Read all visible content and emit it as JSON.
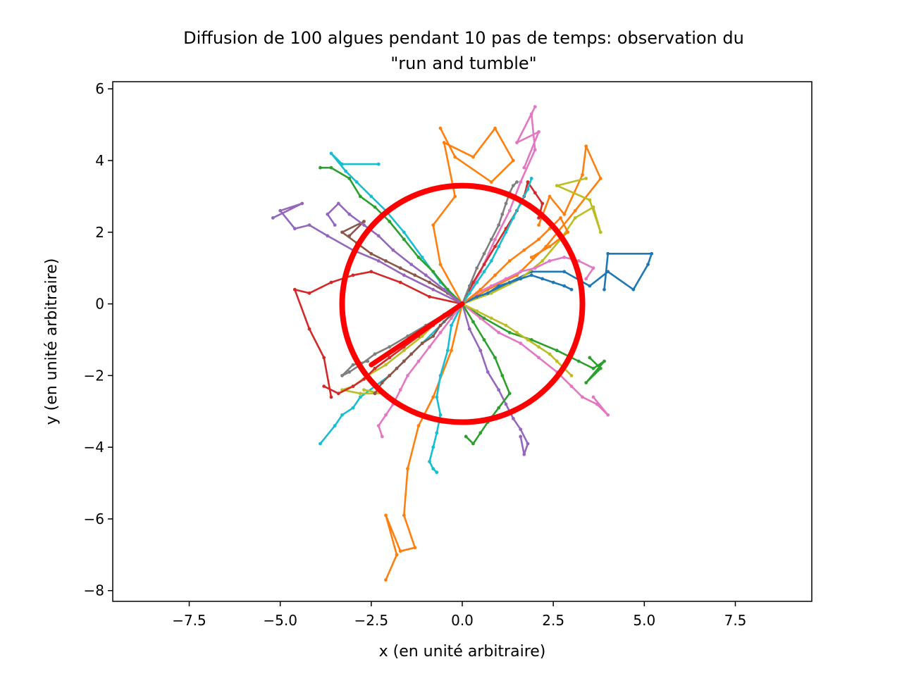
{
  "chart_data": {
    "type": "line",
    "title_line1": "Diffusion de 100 algues pendant 10 pas de temps: observation du",
    "title_line2": "\"run and tumble\"",
    "xlabel": "x (en unité arbitraire)",
    "ylabel": "y (en unité arbitraire)",
    "xlim": [
      -9.6,
      9.6
    ],
    "ylim": [
      -8.3,
      6.2
    ],
    "xticks": [
      -7.5,
      -5.0,
      -2.5,
      0.0,
      2.5,
      5.0,
      7.5
    ],
    "xtick_labels": [
      "−7.5",
      "−5.0",
      "−2.5",
      "0.0",
      "2.5",
      "5.0",
      "7.5"
    ],
    "yticks": [
      -8,
      -6,
      -4,
      -2,
      0,
      2,
      4,
      6
    ],
    "ytick_labels": [
      "−8",
      "−6",
      "−4",
      "−2",
      "0",
      "2",
      "4",
      "6"
    ],
    "grid": false,
    "n_trajectories": 100,
    "n_steps": 10,
    "palette": [
      "#1f77b4",
      "#ff7f0e",
      "#2ca02c",
      "#d62728",
      "#9467bd",
      "#8c564b",
      "#e377c2",
      "#7f7f7f",
      "#bcbd22",
      "#17becf"
    ],
    "series": [
      {
        "color": "#ff7f0e",
        "x": [
          0,
          -0.3,
          -0.8,
          -1.2,
          -1.5,
          -1.6,
          -1.3,
          -1.7,
          -2.1,
          -1.8,
          -2.1
        ],
        "y": [
          0,
          -1.3,
          -2.6,
          -3.4,
          -4.6,
          -5.9,
          -6.8,
          -6.9,
          -5.9,
          -7.0,
          -7.7
        ]
      },
      {
        "color": "#1f77b4",
        "x": [
          0,
          0.9,
          1.9,
          2.8,
          3.5,
          4.0,
          4.7,
          5.1,
          5.2,
          4.0,
          3.9
        ],
        "y": [
          0,
          0.4,
          0.9,
          0.9,
          0.5,
          0.9,
          0.4,
          1.1,
          1.4,
          1.4,
          0.4
        ]
      },
      {
        "color": "#ff7f0e",
        "x": [
          0,
          -0.6,
          -0.8,
          -0.2,
          -0.5,
          0.3,
          0.9,
          1.4,
          0.8,
          -0.2,
          -0.6
        ],
        "y": [
          0,
          1.1,
          2.2,
          3.0,
          4.5,
          4.1,
          4.9,
          4.0,
          3.4,
          4.1,
          4.9
        ]
      },
      {
        "color": "#e377c2",
        "x": [
          0,
          0.5,
          0.9,
          1.3,
          1.6,
          2.0,
          1.9,
          2.0,
          1.5,
          2.1,
          1.7
        ],
        "y": [
          0,
          0.9,
          1.8,
          2.6,
          3.4,
          4.3,
          5.3,
          5.5,
          4.5,
          4.8,
          3.8
        ]
      },
      {
        "color": "#ff7f0e",
        "x": [
          0,
          0.7,
          1.5,
          2.3,
          3.1,
          3.8,
          3.4,
          3.3,
          2.8,
          2.4,
          2.1
        ],
        "y": [
          0,
          0.4,
          0.8,
          1.6,
          2.6,
          3.5,
          4.4,
          3.6,
          2.5,
          3.0,
          2.2
        ]
      },
      {
        "color": "#bcbd22",
        "x": [
          0,
          0.8,
          1.6,
          2.2,
          2.7,
          3.1,
          3.6,
          3.8,
          3.5,
          2.6,
          3.4
        ],
        "y": [
          0,
          0.3,
          0.7,
          1.2,
          1.8,
          2.4,
          2.7,
          2.0,
          2.9,
          3.3,
          3.5
        ]
      },
      {
        "color": "#d62728",
        "x": [
          0,
          -0.9,
          -1.7,
          -2.5,
          -3.0,
          -3.6,
          -4.2,
          -4.6,
          -4.2,
          -3.8,
          -3.6
        ],
        "y": [
          0,
          0.2,
          0.6,
          0.9,
          0.8,
          0.6,
          0.3,
          0.4,
          -0.7,
          -1.5,
          -2.6
        ]
      },
      {
        "color": "#9467bd",
        "x": [
          0,
          -0.8,
          -1.6,
          -2.3,
          -3.0,
          -3.7,
          -4.2,
          -4.6,
          -5.0,
          -4.4,
          -5.2
        ],
        "y": [
          0,
          0.4,
          0.8,
          1.2,
          1.5,
          1.9,
          2.2,
          2.1,
          2.6,
          2.8,
          2.4
        ]
      },
      {
        "color": "#17becf",
        "x": [
          0,
          -0.6,
          -1.1,
          -1.6,
          -2.1,
          -2.5,
          -2.9,
          -3.2,
          -3.6,
          -3.3,
          -2.3
        ],
        "y": [
          0,
          0.6,
          1.3,
          2.0,
          2.6,
          3.0,
          3.4,
          3.7,
          4.2,
          3.9,
          3.9
        ]
      },
      {
        "color": "#17becf",
        "x": [
          0,
          -0.5,
          -1.1,
          -1.6,
          -2.0,
          -2.4,
          -2.8,
          -3.0,
          -3.3,
          -3.5,
          -3.9
        ],
        "y": [
          0,
          -0.5,
          -1.1,
          -1.6,
          -2.0,
          -2.3,
          -2.6,
          -2.9,
          -3.1,
          -3.4,
          -3.9
        ]
      },
      {
        "color": "#17becf",
        "x": [
          0,
          -0.3,
          -0.4,
          -0.6,
          -0.7,
          -0.6,
          -0.7,
          -0.8,
          -0.9,
          -0.8,
          -0.7
        ],
        "y": [
          0,
          -0.6,
          -1.3,
          -2.0,
          -2.6,
          -3.1,
          -3.6,
          -4.0,
          -4.4,
          -4.6,
          -4.7
        ]
      },
      {
        "color": "#2ca02c",
        "x": [
          0,
          0.6,
          1.3,
          1.9,
          2.6,
          3.2,
          3.6,
          3.9,
          3.4,
          3.8,
          3.5
        ],
        "y": [
          0,
          -0.4,
          -0.8,
          -1.0,
          -1.3,
          -1.6,
          -1.8,
          -1.6,
          -2.2,
          -1.8,
          -1.5
        ]
      },
      {
        "color": "#e377c2",
        "x": [
          0,
          0.5,
          1.0,
          1.6,
          2.1,
          2.6,
          3.0,
          3.3,
          3.7,
          4.0,
          3.6
        ],
        "y": [
          0,
          -0.4,
          -0.8,
          -1.1,
          -1.5,
          -1.9,
          -2.3,
          -2.6,
          -2.8,
          -3.1,
          -2.6
        ]
      },
      {
        "color": "#9467bd",
        "x": [
          0,
          0.2,
          0.5,
          0.7,
          1.0,
          1.2,
          1.4,
          1.6,
          1.8,
          1.7,
          1.6
        ],
        "y": [
          0,
          -0.7,
          -1.3,
          -1.9,
          -2.4,
          -2.8,
          -3.2,
          -3.5,
          -3.9,
          -4.2,
          -3.7
        ]
      },
      {
        "color": "#8c564b",
        "x": [
          0,
          -0.4,
          -0.9,
          -1.3,
          -1.7,
          -2.1,
          -2.5,
          -2.9,
          -3.3,
          -2.7,
          -3.1
        ],
        "y": [
          0,
          0.3,
          0.6,
          0.8,
          1.0,
          1.2,
          1.4,
          1.7,
          2.0,
          2.3,
          1.9
        ]
      },
      {
        "color": "#2ca02c",
        "x": [
          0,
          -0.4,
          -0.8,
          -1.2,
          -1.6,
          -2.0,
          -2.4,
          -2.8,
          -3.1,
          -3.6,
          -3.9
        ],
        "y": [
          0,
          0.4,
          0.9,
          1.3,
          1.8,
          2.3,
          2.7,
          3.0,
          3.5,
          3.8,
          3.8
        ]
      },
      {
        "color": "#d62728",
        "x": [
          0,
          0.3,
          0.6,
          0.9,
          1.2,
          1.5,
          1.7,
          1.8,
          2.0,
          2.2,
          2.1
        ],
        "y": [
          0,
          0.6,
          1.1,
          1.6,
          2.1,
          2.6,
          3.0,
          3.4,
          3.1,
          2.8,
          2.4
        ]
      },
      {
        "color": "#7f7f7f",
        "x": [
          0,
          -0.5,
          -1.0,
          -1.5,
          -2.0,
          -2.4,
          -2.8,
          -3.1,
          -3.3,
          -3.0,
          -2.6
        ],
        "y": [
          0,
          -0.3,
          -0.6,
          -0.9,
          -1.2,
          -1.4,
          -1.7,
          -1.9,
          -2.0,
          -1.7,
          -1.6
        ]
      },
      {
        "color": "#bcbd22",
        "x": [
          0,
          -0.6,
          -1.1,
          -1.6,
          -2.1,
          -2.6,
          -3.0,
          -3.3,
          -2.8,
          -2.2,
          -2.7
        ],
        "y": [
          0,
          -0.4,
          -0.9,
          -1.3,
          -1.7,
          -2.0,
          -2.3,
          -2.4,
          -2.5,
          -2.5,
          -2.4
        ]
      },
      {
        "color": "#e377c2",
        "x": [
          0,
          0.4,
          0.8,
          1.2,
          1.6,
          2.0,
          2.4,
          2.8,
          3.2,
          3.6,
          3.4
        ],
        "y": [
          0,
          0.3,
          0.5,
          0.7,
          0.9,
          1.0,
          1.2,
          1.3,
          1.2,
          1.0,
          0.7
        ]
      },
      {
        "color": "#9467bd",
        "x": [
          0,
          -0.5,
          -1.0,
          -1.4,
          -1.9,
          -2.3,
          -2.7,
          -3.1,
          -3.4,
          -3.7,
          -3.5
        ],
        "y": [
          0,
          0.4,
          0.8,
          1.1,
          1.5,
          1.9,
          2.2,
          2.5,
          2.8,
          2.5,
          2.2
        ]
      },
      {
        "color": "#1f77b4",
        "x": [
          0,
          0.4,
          0.7,
          1.0,
          1.3,
          1.6,
          1.9,
          2.2,
          2.5,
          2.8,
          3.0
        ],
        "y": [
          0,
          0.2,
          0.3,
          0.5,
          0.6,
          0.7,
          0.8,
          0.7,
          0.6,
          0.5,
          0.4
        ]
      },
      {
        "color": "#ff7f0e",
        "x": [
          0,
          0.5,
          0.9,
          1.3,
          1.7,
          2.1,
          2.4,
          2.7,
          2.9,
          2.4,
          1.9
        ],
        "y": [
          0,
          0.4,
          0.8,
          1.2,
          1.5,
          1.8,
          2.1,
          2.4,
          2.0,
          1.6,
          1.3
        ]
      },
      {
        "color": "#8c564b",
        "x": [
          0,
          -0.3,
          -0.6,
          -0.8,
          -1.1,
          -1.4,
          -1.6,
          -1.8,
          -2.0,
          -2.2,
          -2.4
        ],
        "y": [
          0,
          -0.3,
          -0.6,
          -0.9,
          -1.1,
          -1.4,
          -1.6,
          -1.8,
          -2.0,
          -2.2,
          -2.5
        ]
      },
      {
        "color": "#d62728",
        "x": [
          0,
          -0.4,
          -0.8,
          -1.2,
          -1.6,
          -2.0,
          -2.4,
          -2.7,
          -3.0,
          -3.4,
          -3.8
        ],
        "y": [
          0,
          -0.3,
          -0.6,
          -0.9,
          -1.2,
          -1.5,
          -1.8,
          -2.1,
          -2.3,
          -2.5,
          -2.3
        ]
      },
      {
        "color": "#2ca02c",
        "x": [
          0,
          0.3,
          0.6,
          0.9,
          1.1,
          1.3,
          1.0,
          0.7,
          0.5,
          0.3,
          0.1
        ],
        "y": [
          0,
          -0.5,
          -1.0,
          -1.5,
          -2.0,
          -2.5,
          -2.9,
          -3.3,
          -3.6,
          -3.9,
          -3.7
        ]
      },
      {
        "color": "#17becf",
        "x": [
          0,
          0.2,
          0.4,
          0.6,
          0.8,
          1.0,
          1.2,
          1.4,
          1.6,
          1.8,
          1.9
        ],
        "y": [
          0,
          0.3,
          0.6,
          0.9,
          1.2,
          1.6,
          2.0,
          2.4,
          2.8,
          3.2,
          3.5
        ]
      },
      {
        "color": "#7f7f7f",
        "x": [
          0,
          0.2,
          0.4,
          0.6,
          0.8,
          1.0,
          1.1,
          1.2,
          1.3,
          1.4,
          1.5
        ],
        "y": [
          0,
          0.5,
          1.0,
          1.4,
          1.8,
          2.2,
          2.5,
          2.8,
          3.1,
          3.3,
          3.4
        ]
      },
      {
        "color": "#e377c2",
        "x": [
          0,
          -0.3,
          -0.6,
          -0.9,
          -1.2,
          -1.5,
          -1.7,
          -1.9,
          -2.1,
          -2.3,
          -2.2
        ],
        "y": [
          0,
          -0.4,
          -0.8,
          -1.2,
          -1.6,
          -2.0,
          -2.4,
          -2.8,
          -3.1,
          -3.4,
          -3.7
        ]
      },
      {
        "color": "#bcbd22",
        "x": [
          0,
          0.4,
          0.8,
          1.2,
          1.5,
          1.8,
          2.1,
          2.4,
          2.6,
          2.8,
          3.0
        ],
        "y": [
          0,
          -0.2,
          -0.4,
          -0.6,
          -0.8,
          -1.0,
          -1.2,
          -1.4,
          -1.6,
          -1.8,
          -2.0
        ]
      }
    ],
    "annotation_circle": {
      "cx": 0.0,
      "cy": 0.0,
      "r": 3.3,
      "color": "#ff0000"
    },
    "annotation_radius": {
      "x1": 0.0,
      "y1": 0.0,
      "x2": -2.5,
      "y2": -1.7,
      "color": "#ff0000"
    }
  }
}
